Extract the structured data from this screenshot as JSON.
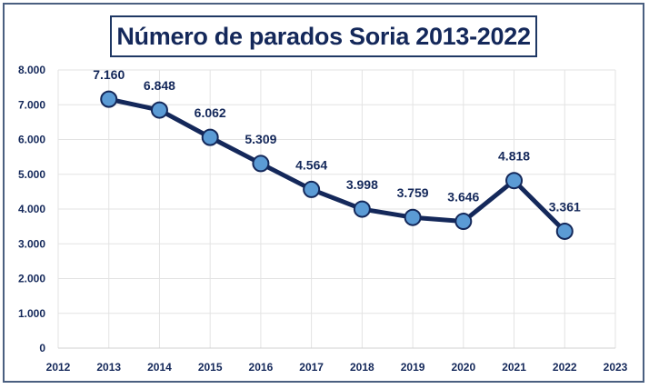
{
  "chart_data": {
    "type": "line",
    "title": "Número de parados Soria 2013-2022",
    "xlabel": "",
    "ylabel": "",
    "x": [
      2013,
      2014,
      2015,
      2016,
      2017,
      2018,
      2019,
      2020,
      2021,
      2022
    ],
    "values": [
      7160,
      6848,
      6062,
      5309,
      4564,
      3998,
      3759,
      3646,
      4818,
      3361
    ],
    "data_labels": [
      "7.160",
      "6.848",
      "6.062",
      "5.309",
      "4.564",
      "3.998",
      "3.759",
      "3.646",
      "4.818",
      "3.361"
    ],
    "xlim": [
      2012,
      2023
    ],
    "ylim": [
      0,
      8000
    ],
    "x_ticks": [
      "2012",
      "2013",
      "2014",
      "2015",
      "2016",
      "2017",
      "2018",
      "2019",
      "2020",
      "2021",
      "2022",
      "2023"
    ],
    "y_ticks": [
      "0",
      "1.000",
      "2.000",
      "3.000",
      "4.000",
      "5.000",
      "6.000",
      "7.000",
      "8.000"
    ],
    "grid": true,
    "legend": "none",
    "colors": {
      "line": "#14285a",
      "marker_fill": "#5b9bd5",
      "marker_edge": "#14285a",
      "grid": "#e3e3e3",
      "text": "#14285a"
    }
  }
}
